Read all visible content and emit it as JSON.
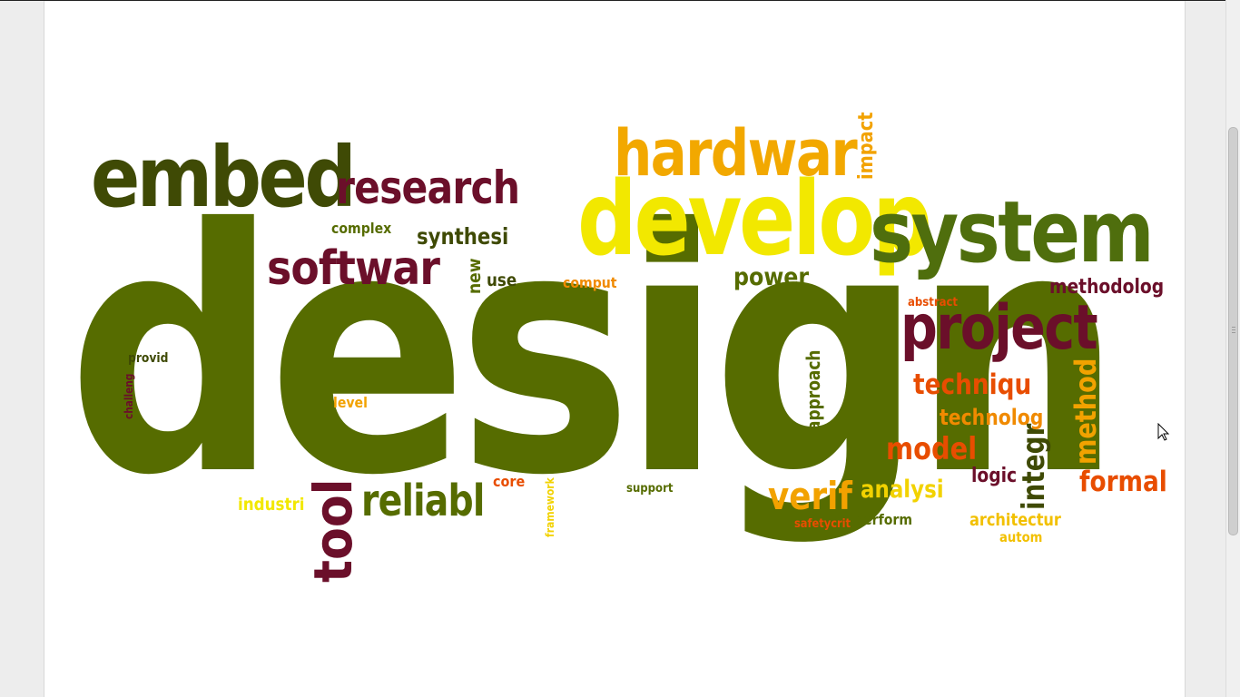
{
  "words": {
    "design": {
      "text": "design",
      "color": "#566c00"
    },
    "develop": {
      "text": "develop",
      "color": "#f2e800"
    },
    "system": {
      "text": "system",
      "color": "#4f6e0d"
    },
    "embed": {
      "text": "embed",
      "color": "#3f4a05"
    },
    "hardwar": {
      "text": "hardwar",
      "color": "#f2a800"
    },
    "research": {
      "text": "research",
      "color": "#6b0f2a"
    },
    "softwar": {
      "text": "softwar",
      "color": "#6b0f2a"
    },
    "project": {
      "text": "project",
      "color": "#6b0f2a"
    },
    "tool": {
      "text": "tool",
      "color": "#6b0f2a"
    },
    "reliabl": {
      "text": "reliabl",
      "color": "#566c00"
    },
    "verif": {
      "text": "verif",
      "color": "#f2a200"
    },
    "model": {
      "text": "model",
      "color": "#e84d00"
    },
    "techniqu": {
      "text": "techniqu",
      "color": "#e84d00"
    },
    "technolog": {
      "text": "technolog",
      "color": "#f08a00"
    },
    "formal": {
      "text": "formal",
      "color": "#e84d00"
    },
    "method": {
      "text": "method",
      "color": "#f2a200"
    },
    "integr": {
      "text": "integr",
      "color": "#3f4a05"
    },
    "analysi": {
      "text": "analysi",
      "color": "#f2d200"
    },
    "power": {
      "text": "power",
      "color": "#566c00"
    },
    "synthesi": {
      "text": "synthesi",
      "color": "#3f4a05"
    },
    "methodolog": {
      "text": "methodolog",
      "color": "#6b0f2a"
    },
    "impact": {
      "text": "impact",
      "color": "#f2a200"
    },
    "approach": {
      "text": "approach",
      "color": "#566c00"
    },
    "logic": {
      "text": "logic",
      "color": "#6b0f2a"
    },
    "architectur": {
      "text": "architectur",
      "color": "#f2c000"
    },
    "industri": {
      "text": "industri",
      "color": "#f2e800"
    },
    "complex": {
      "text": "complex",
      "color": "#566c00"
    },
    "new": {
      "text": "new",
      "color": "#566c00"
    },
    "use": {
      "text": "use",
      "color": "#3f4a05"
    },
    "comput": {
      "text": "comput",
      "color": "#f08a00"
    },
    "abstract": {
      "text": "abstract",
      "color": "#e84d00"
    },
    "provid": {
      "text": "provid",
      "color": "#3f4a05"
    },
    "challeng": {
      "text": "challeng",
      "color": "#6b0f2a"
    },
    "level": {
      "text": "level",
      "color": "#f2a200"
    },
    "core": {
      "text": "core",
      "color": "#e84d00"
    },
    "framework": {
      "text": "framework",
      "color": "#f2d200"
    },
    "support": {
      "text": "support",
      "color": "#566c00"
    },
    "safetycrit": {
      "text": "safetycrit",
      "color": "#e84d00"
    },
    "perform": {
      "text": "perform",
      "color": "#566c00"
    },
    "autom": {
      "text": "autom",
      "color": "#f2c000"
    }
  }
}
